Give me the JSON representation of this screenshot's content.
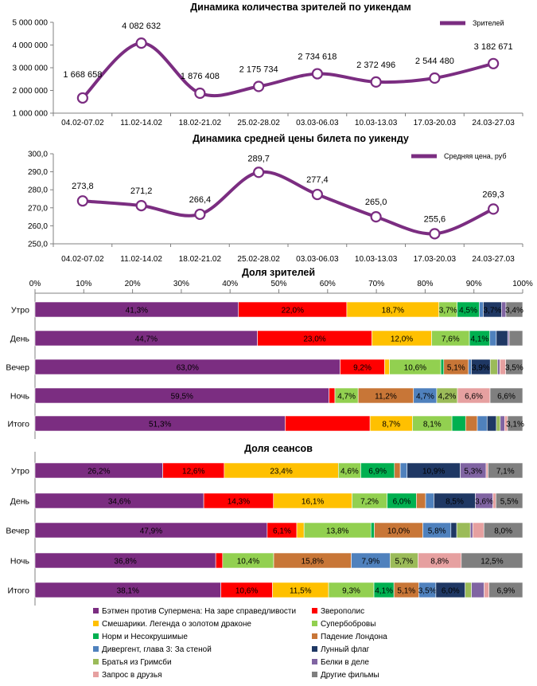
{
  "colors": {
    "batman": "#7B2D81",
    "zveropolis": "#FF0000",
    "smeshariki": "#FFC000",
    "superbobrovy": "#92D050",
    "norm": "#00B050",
    "london": "#C87637",
    "divergent": "#4F81BD",
    "moonflag": "#1F3864",
    "tastecake": "#9BBB59",
    "belki": "#8064A2",
    "friends": "#E6A0A0",
    "other": "#7F7F7F",
    "line": "#7B2D81",
    "grid": "#D9D9D9"
  },
  "chart_data": [
    {
      "id": "viewers",
      "type": "line",
      "title": "Динамика количества зрителей по уикендам",
      "legend": "Зрителей",
      "legend_position": "top-right",
      "categories": [
        "04.02-07.02",
        "11.02-14.02",
        "18.02-21.02",
        "25.02-28.02",
        "03.03-06.03",
        "10.03-13.03",
        "17.03-20.03",
        "24.03-27.03"
      ],
      "values": [
        1668658,
        4082632,
        1876408,
        2175734,
        2734618,
        2372496,
        2544480,
        3182671
      ],
      "labels": [
        "1 668 658",
        "4 082 632",
        "1 876 408",
        "2 175 734",
        "2 734 618",
        "2 372 496",
        "2 544 480",
        "3 182 671"
      ],
      "ylim": [
        1000000,
        5000000
      ],
      "yticks": [
        "1 000 000",
        "2 000 000",
        "3 000 000",
        "4 000 000",
        "5 000 000"
      ]
    },
    {
      "id": "price",
      "type": "line",
      "title": "Динамика средней цены билета по уикенду",
      "legend": "Средняя цена, руб",
      "legend_position": "top-right",
      "categories": [
        "04.02-07.02",
        "11.02-14.02",
        "18.02-21.02",
        "25.02-28.02",
        "03.03-06.03",
        "10.03-13.03",
        "17.03-20.03",
        "24.03-27.03"
      ],
      "values": [
        273.8,
        271.2,
        266.4,
        289.7,
        277.4,
        265.0,
        255.6,
        269.3
      ],
      "labels": [
        "273,8",
        "271,2",
        "266,4",
        "289,7",
        "277,4",
        "265,0",
        "255,6",
        "269,3"
      ],
      "ylim": [
        250,
        300
      ],
      "yticks": [
        "250,0",
        "260,0",
        "270,0",
        "280,0",
        "290,0",
        "300,0"
      ]
    },
    {
      "id": "viewers_share",
      "type": "bar",
      "stacked": "100%",
      "orientation": "horizontal",
      "title": "Доля зрителей",
      "xticks": [
        "0%",
        "10%",
        "20%",
        "30%",
        "40%",
        "50%",
        "60%",
        "70%",
        "80%",
        "90%",
        "100%"
      ],
      "categories": [
        "Утро",
        "День",
        "Вечер",
        "Ночь",
        "Итого"
      ],
      "series": [
        {
          "name": "batman",
          "values": [
            41.3,
            44.7,
            63.0,
            59.5,
            51.3
          ],
          "labels": [
            "41,3%",
            "44,7%",
            "63,0%",
            "59,5%",
            "51,3%"
          ]
        },
        {
          "name": "zveropolis",
          "values": [
            22.0,
            23.0,
            9.2,
            1.2,
            17.4
          ],
          "labels": [
            "22,0%",
            "23,0%",
            "9,2%",
            "",
            ""
          ]
        },
        {
          "name": "smeshariki",
          "values": [
            18.7,
            12.0,
            1.0,
            0,
            8.7
          ],
          "labels": [
            "18,7%",
            "12,0%",
            "",
            "",
            "8,7%"
          ]
        },
        {
          "name": "superbobrovy",
          "values": [
            3.7,
            7.6,
            10.6,
            4.7,
            8.1
          ],
          "labels": [
            "3,7%",
            "7,6%",
            "10,6%",
            "4,7%",
            "8,1%"
          ]
        },
        {
          "name": "norm",
          "values": [
            4.5,
            4.1,
            0.6,
            0,
            2.8
          ],
          "labels": [
            "4,5%",
            "4,1%",
            "",
            "",
            ""
          ]
        },
        {
          "name": "london",
          "values": [
            0,
            0,
            5.1,
            11.2,
            2.4
          ],
          "labels": [
            "",
            "",
            "5,1%",
            "11,2%",
            ""
          ]
        },
        {
          "name": "divergent",
          "values": [
            0.8,
            1.3,
            0.6,
            4.7,
            2.0
          ],
          "labels": [
            "",
            "",
            "",
            "4,7%",
            ""
          ]
        },
        {
          "name": "moonflag",
          "values": [
            3.7,
            2.3,
            3.9,
            0,
            1.9
          ],
          "labels": [
            "3,7%",
            "",
            "3,9%",
            "",
            ""
          ]
        },
        {
          "name": "tastecake",
          "values": [
            0,
            0,
            1.5,
            4.2,
            0.8
          ],
          "labels": [
            "",
            "",
            "",
            "4,2%",
            ""
          ]
        },
        {
          "name": "belki",
          "values": [
            0.9,
            0.3,
            0.5,
            0,
            0.9
          ],
          "labels": [
            "",
            "",
            "",
            "",
            ""
          ]
        },
        {
          "name": "friends",
          "values": [
            0,
            0,
            1.2,
            6.6,
            0.6
          ],
          "labels": [
            "",
            "",
            "",
            "6,6%",
            ""
          ]
        },
        {
          "name": "other",
          "values": [
            3.4,
            2.7,
            3.5,
            6.6,
            3.1
          ],
          "labels": [
            "3,4%",
            "",
            "3,5%",
            "6,6%",
            "3,1%"
          ]
        }
      ]
    },
    {
      "id": "sessions_share",
      "type": "bar",
      "stacked": "100%",
      "orientation": "horizontal",
      "title": "Доля сеансов",
      "categories": [
        "Утро",
        "День",
        "Вечер",
        "Ночь",
        "Итого"
      ],
      "series": [
        {
          "name": "batman",
          "values": [
            26.2,
            34.6,
            47.9,
            36.8,
            38.1
          ],
          "labels": [
            "26,2%",
            "34,6%",
            "47,9%",
            "36,8%",
            "38,1%"
          ]
        },
        {
          "name": "zveropolis",
          "values": [
            12.6,
            14.3,
            6.1,
            1.4,
            10.6
          ],
          "labels": [
            "12,6%",
            "14,3%",
            "6,1%",
            "",
            "10,6%"
          ]
        },
        {
          "name": "smeshariki",
          "values": [
            23.4,
            16.1,
            1.5,
            0,
            11.5
          ],
          "labels": [
            "23,4%",
            "16,1%",
            "",
            "",
            "11,5%"
          ]
        },
        {
          "name": "superbobrovy",
          "values": [
            4.6,
            7.2,
            13.8,
            10.4,
            9.3
          ],
          "labels": [
            "4,6%",
            "7,2%",
            "13,8%",
            "10,4%",
            "9,3%"
          ]
        },
        {
          "name": "norm",
          "values": [
            6.9,
            6.0,
            0.7,
            0,
            4.1
          ],
          "labels": [
            "6,9%",
            "6,0%",
            "",
            "",
            "4,1%"
          ]
        },
        {
          "name": "london",
          "values": [
            1.2,
            1.9,
            10.0,
            15.8,
            5.1
          ],
          "labels": [
            "",
            "",
            "10,0%",
            "15,8%",
            "5,1%"
          ]
        },
        {
          "name": "divergent",
          "values": [
            1.4,
            1.7,
            5.8,
            7.9,
            3.5
          ],
          "labels": [
            "",
            "",
            "5,8%",
            "7,9%",
            "3,5%"
          ]
        },
        {
          "name": "moonflag",
          "values": [
            10.9,
            8.5,
            1.2,
            0,
            6.0
          ],
          "labels": [
            "10,9%",
            "8,5%",
            "",
            "",
            "6,0%"
          ]
        },
        {
          "name": "tastecake",
          "values": [
            0,
            0,
            2.8,
            5.7,
            1.3
          ],
          "labels": [
            "",
            "",
            "",
            "5,7%",
            ""
          ]
        },
        {
          "name": "belki",
          "values": [
            5.3,
            3.6,
            0.5,
            0,
            2.6
          ],
          "labels": [
            "5,3%",
            "3,6%",
            "",
            "",
            ""
          ]
        },
        {
          "name": "friends",
          "values": [
            0.4,
            0.6,
            2.3,
            8.8,
            1.0
          ],
          "labels": [
            "",
            "",
            "",
            "8,8%",
            ""
          ]
        },
        {
          "name": "other",
          "values": [
            7.1,
            5.5,
            8.0,
            12.5,
            6.9
          ],
          "labels": [
            "7,1%",
            "5,5%",
            "8,0%",
            "12,5%",
            "6,9%"
          ]
        }
      ]
    }
  ],
  "legend": [
    {
      "key": "batman",
      "label": "Бэтмен против Супермена: На заре справедливости"
    },
    {
      "key": "zveropolis",
      "label": "Зверополис"
    },
    {
      "key": "smeshariki",
      "label": "Смешарики. Легенда о золотом драконе"
    },
    {
      "key": "superbobrovy",
      "label": "Супербобровы"
    },
    {
      "key": "norm",
      "label": "Норм и Несокрушимые"
    },
    {
      "key": "london",
      "label": "Падение Лондона"
    },
    {
      "key": "divergent",
      "label": "Дивергент, глава 3: За стеной"
    },
    {
      "key": "moonflag",
      "label": "Лунный флаг"
    },
    {
      "key": "tastecake",
      "label": "Братья из Гримсби"
    },
    {
      "key": "belki",
      "label": "Белки в деле"
    },
    {
      "key": "friends",
      "label": "Запрос в друзья"
    },
    {
      "key": "other",
      "label": "Другие фильмы"
    }
  ]
}
